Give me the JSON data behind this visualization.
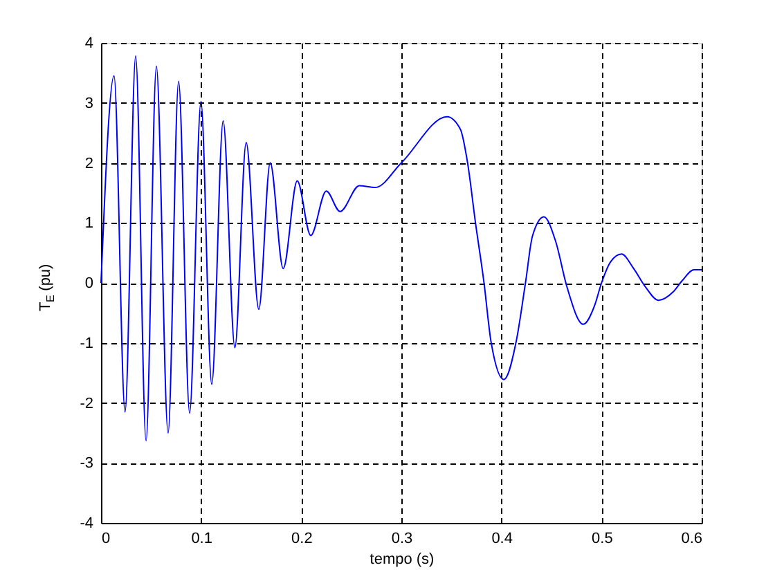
{
  "chart_data": {
    "type": "line",
    "xlabel": "tempo (s)",
    "ylabel": "T$_{E}$ (pu)",
    "x": [
      0,
      0.013,
      0.024,
      0.0346,
      0.045,
      0.0553,
      0.067,
      0.0775,
      0.0885,
      0.0998,
      0.1106,
      0.122,
      0.1337,
      0.145,
      0.1576,
      0.169,
      0.182,
      0.196,
      0.2095,
      0.225,
      0.2388,
      0.258,
      0.274,
      0.3,
      0.3457,
      0.359,
      0.366,
      0.374,
      0.3826,
      0.3895,
      0.4024,
      0.4148,
      0.424,
      0.431,
      0.4424,
      0.454,
      0.4655,
      0.4817,
      0.493,
      0.5,
      0.509,
      0.52,
      0.532,
      0.544,
      0.5568,
      0.5715,
      0.5807,
      0.5923,
      0.6
    ],
    "series": [
      {
        "color": "#0000ff",
        "values": [
          0,
          3.45,
          -2.15,
          3.78,
          -2.63,
          3.61,
          -2.5,
          3.36,
          -2.17,
          3.02,
          -1.69,
          2.7,
          -1.08,
          2.34,
          -0.44,
          2.0,
          0.24,
          1.7,
          0.79,
          1.53,
          1.19,
          1.62,
          1.59,
          2.0,
          2.77,
          2.56,
          2.02,
          1.01,
          0,
          -0.97,
          -1.61,
          -0.97,
          0,
          0.78,
          1.1,
          0.7,
          -0.07,
          -0.69,
          -0.38,
          0,
          0.35,
          0.48,
          0.24,
          -0.07,
          -0.29,
          -0.15,
          0.04,
          0.22,
          0.22
        ]
      }
    ],
    "xlim": [
      0,
      0.6
    ],
    "ylim": [
      -4,
      4
    ],
    "xticks": [
      0,
      0.1,
      0.2,
      0.3,
      0.4,
      0.5,
      0.6
    ],
    "yticks": [
      -4,
      -3,
      -2,
      -1,
      0,
      1,
      2,
      3,
      4
    ],
    "grid": true,
    "line_style": "solid"
  }
}
